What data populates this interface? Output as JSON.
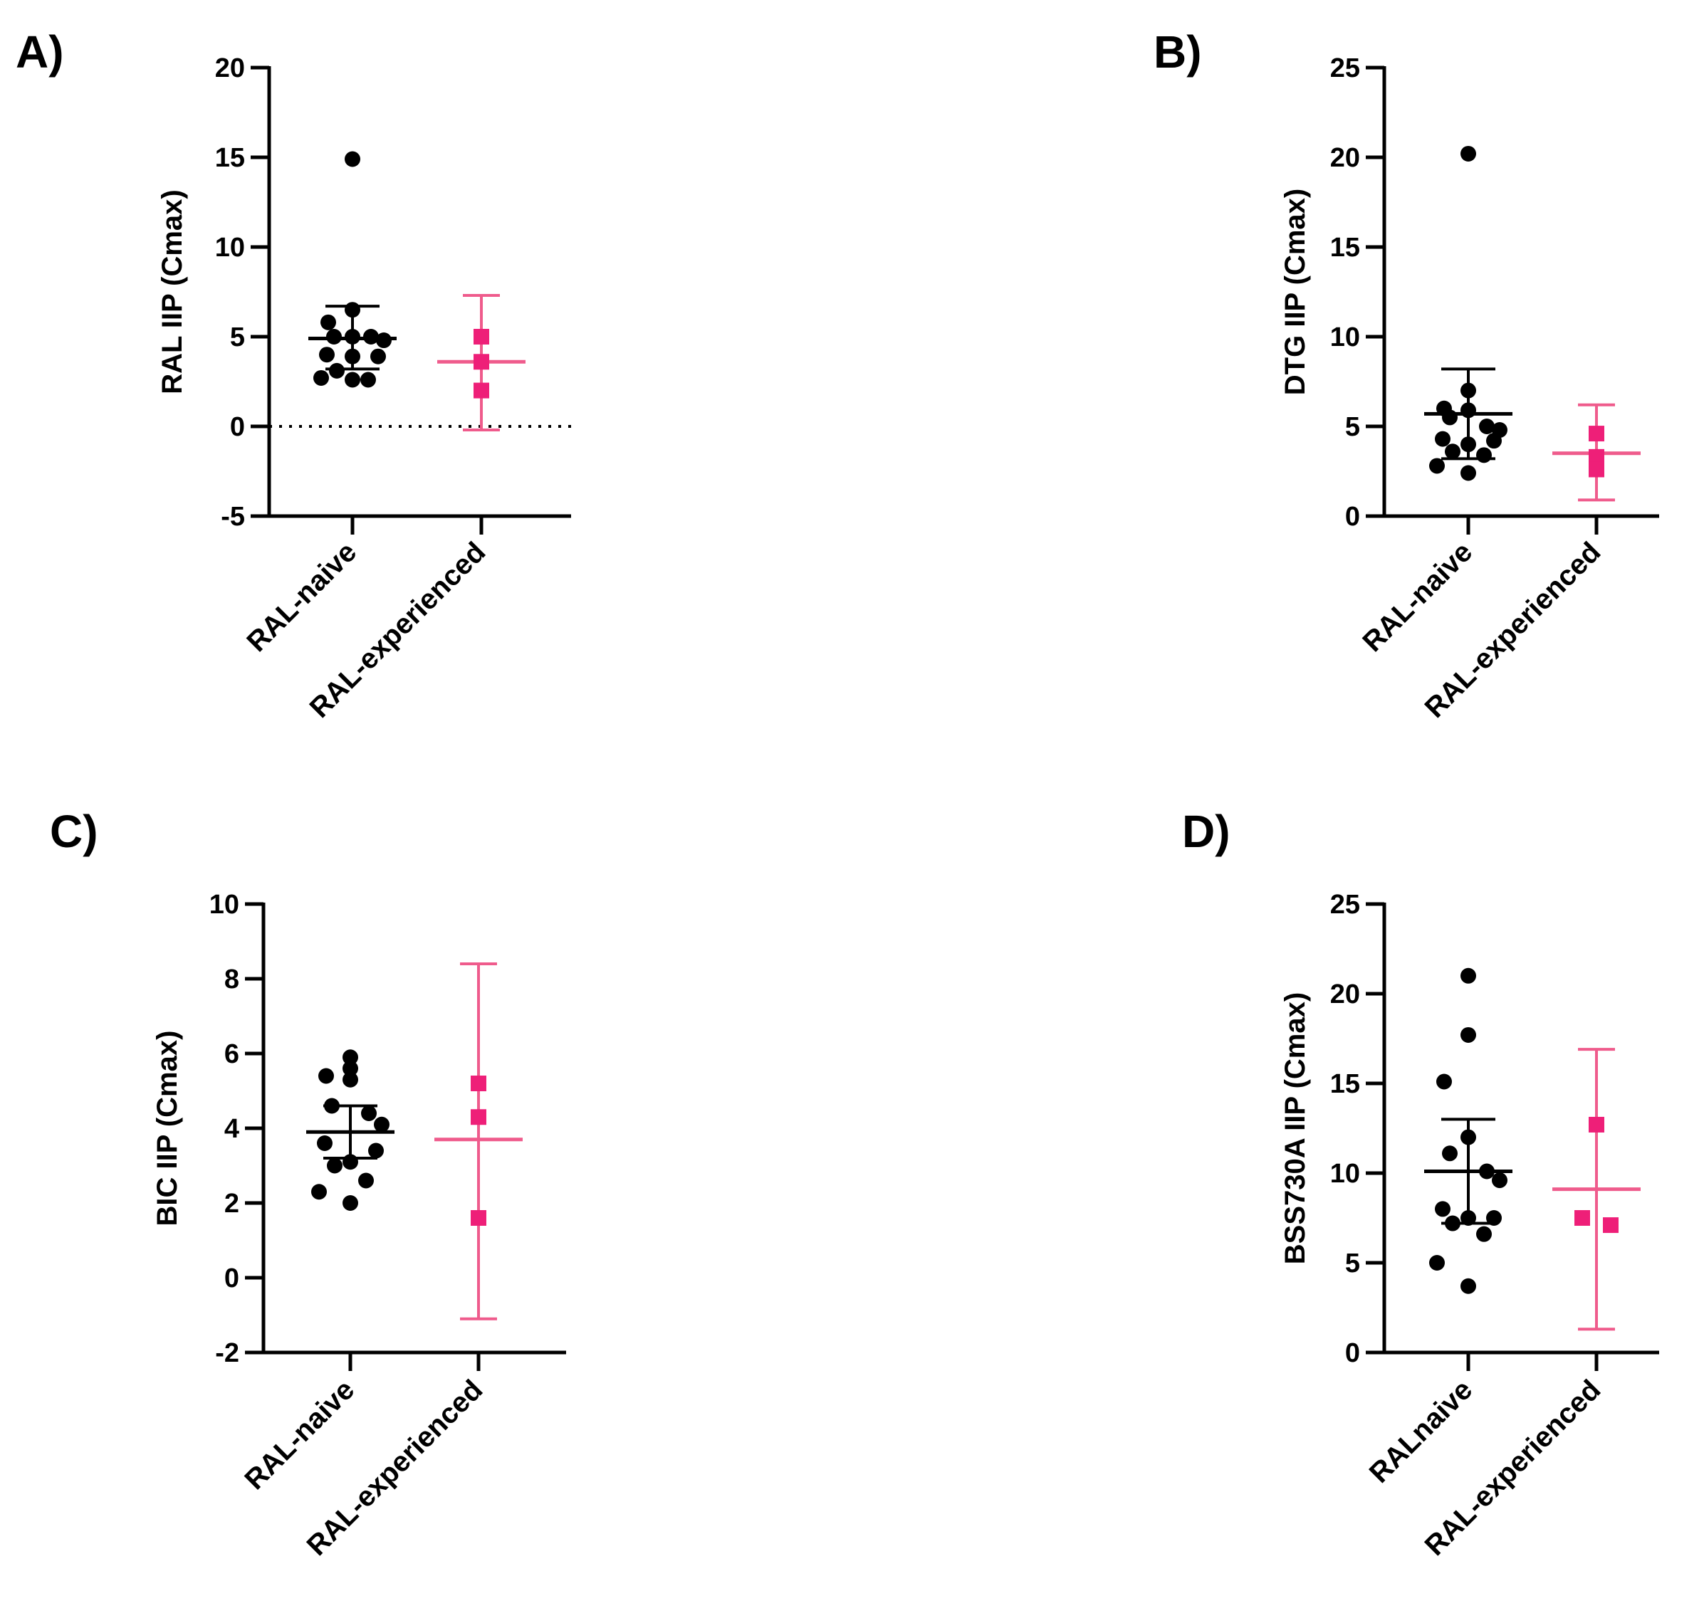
{
  "colors": {
    "naive": "#000000",
    "experienced": "#ee1f78",
    "experienced_bar": "#ef5b8c"
  },
  "chart_data": [
    {
      "panel": "A)",
      "type": "scatter",
      "ylabel": "RAL IIP (Cmax)",
      "ylim": [
        -5,
        20
      ],
      "yticks": [
        -5,
        0,
        5,
        10,
        15,
        20
      ],
      "zero_line": true,
      "categories": [
        "RAL-naive",
        "RAL-experienced"
      ],
      "series": [
        {
          "name": "RAL-naive",
          "mean": 4.9,
          "err_low": 3.2,
          "err_high": 6.7,
          "points": [
            14.9,
            6.5,
            5.8,
            5.0,
            5.0,
            5.0,
            4.8,
            4.0,
            3.9,
            3.9,
            3.1,
            2.6,
            2.7,
            2.6
          ]
        },
        {
          "name": "RAL-experienced",
          "mean": 3.6,
          "err_low": -0.2,
          "err_high": 7.3,
          "points": [
            5.0,
            3.6,
            2.0
          ]
        }
      ]
    },
    {
      "panel": "B)",
      "type": "scatter",
      "ylabel": "DTG IIP (Cmax)",
      "ylim": [
        0,
        25
      ],
      "yticks": [
        0,
        5,
        10,
        15,
        20,
        25
      ],
      "zero_line": false,
      "categories": [
        "RAL-naive",
        "RAL-experienced"
      ],
      "series": [
        {
          "name": "RAL-naive",
          "mean": 5.7,
          "err_low": 3.2,
          "err_high": 8.2,
          "points": [
            20.2,
            7.0,
            6.0,
            5.9,
            5.5,
            5.0,
            4.8,
            4.3,
            4.2,
            4.0,
            3.6,
            3.4,
            2.8,
            2.4
          ]
        },
        {
          "name": "RAL-experienced",
          "mean": 3.5,
          "err_low": 0.9,
          "err_high": 6.2,
          "points": [
            4.6,
            3.3,
            2.6
          ]
        }
      ]
    },
    {
      "panel": "C)",
      "type": "scatter",
      "ylabel": "BIC IIP (Cmax)",
      "ylim": [
        -2,
        10
      ],
      "yticks": [
        -2,
        0,
        2,
        4,
        6,
        8,
        10
      ],
      "zero_line": false,
      "categories": [
        "RAL-naive",
        "RAL-experienced"
      ],
      "series": [
        {
          "name": "RAL-naive",
          "mean": 3.9,
          "err_low": 3.2,
          "err_high": 4.6,
          "points": [
            5.9,
            5.6,
            5.4,
            5.3,
            4.6,
            4.4,
            4.1,
            3.6,
            3.4,
            3.1,
            3.0,
            2.6,
            2.3,
            2.0
          ]
        },
        {
          "name": "RAL-experienced",
          "mean": 3.7,
          "err_low": -1.1,
          "err_high": 8.4,
          "points": [
            5.2,
            4.3,
            1.6
          ]
        }
      ]
    },
    {
      "panel": "D)",
      "type": "scatter",
      "ylabel": "BSS730A IIP (Cmax)",
      "ylim": [
        0,
        25
      ],
      "yticks": [
        0,
        5,
        10,
        15,
        20,
        25
      ],
      "zero_line": false,
      "categories": [
        "RALnaive",
        "RAL-experienced"
      ],
      "series": [
        {
          "name": "RALnaive",
          "mean": 10.1,
          "err_low": 7.2,
          "err_high": 13.0,
          "points": [
            21.0,
            17.7,
            15.1,
            12.0,
            11.1,
            10.1,
            9.6,
            8.0,
            7.5,
            7.5,
            7.2,
            6.6,
            5.0,
            3.7
          ]
        },
        {
          "name": "RAL-experienced",
          "mean": 9.1,
          "err_low": 1.3,
          "err_high": 16.9,
          "points": [
            12.7,
            7.5,
            7.1
          ]
        }
      ]
    }
  ]
}
